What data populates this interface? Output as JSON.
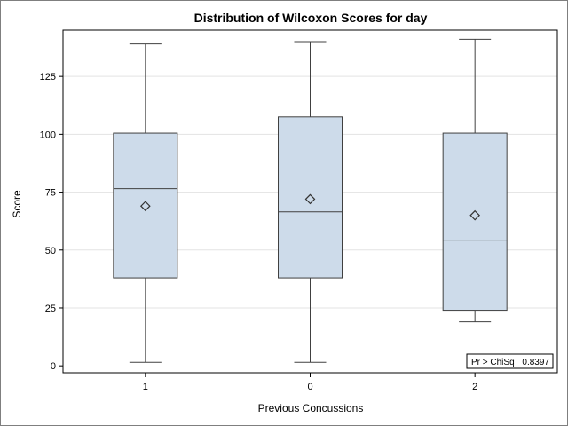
{
  "chart_data": {
    "type": "box",
    "title": "Distribution of Wilcoxon Scores for day",
    "xlabel": "Previous Concussions",
    "ylabel": "Score",
    "ylim": [
      -3,
      145
    ],
    "yticks": [
      0,
      25,
      50,
      75,
      100,
      125
    ],
    "grid": true,
    "categories": [
      "1",
      "0",
      "2"
    ],
    "boxes": [
      {
        "category": "1",
        "min": 1.5,
        "q1": 38,
        "median": 76.5,
        "q3": 100.5,
        "max": 139,
        "mean": 69
      },
      {
        "category": "0",
        "min": 1.5,
        "q1": 38,
        "median": 66.5,
        "q3": 107.5,
        "max": 140,
        "mean": 72
      },
      {
        "category": "2",
        "min": 19,
        "q1": 24,
        "median": 54,
        "q3": 100.5,
        "max": 141,
        "mean": 65
      }
    ],
    "inset": {
      "label": "Pr > ChiSq",
      "value": "0.8397",
      "position": "bottom-right"
    },
    "colors": {
      "box_fill": "#cddbea",
      "box_stroke": "#404040",
      "grid": "#e3e3e3"
    }
  }
}
